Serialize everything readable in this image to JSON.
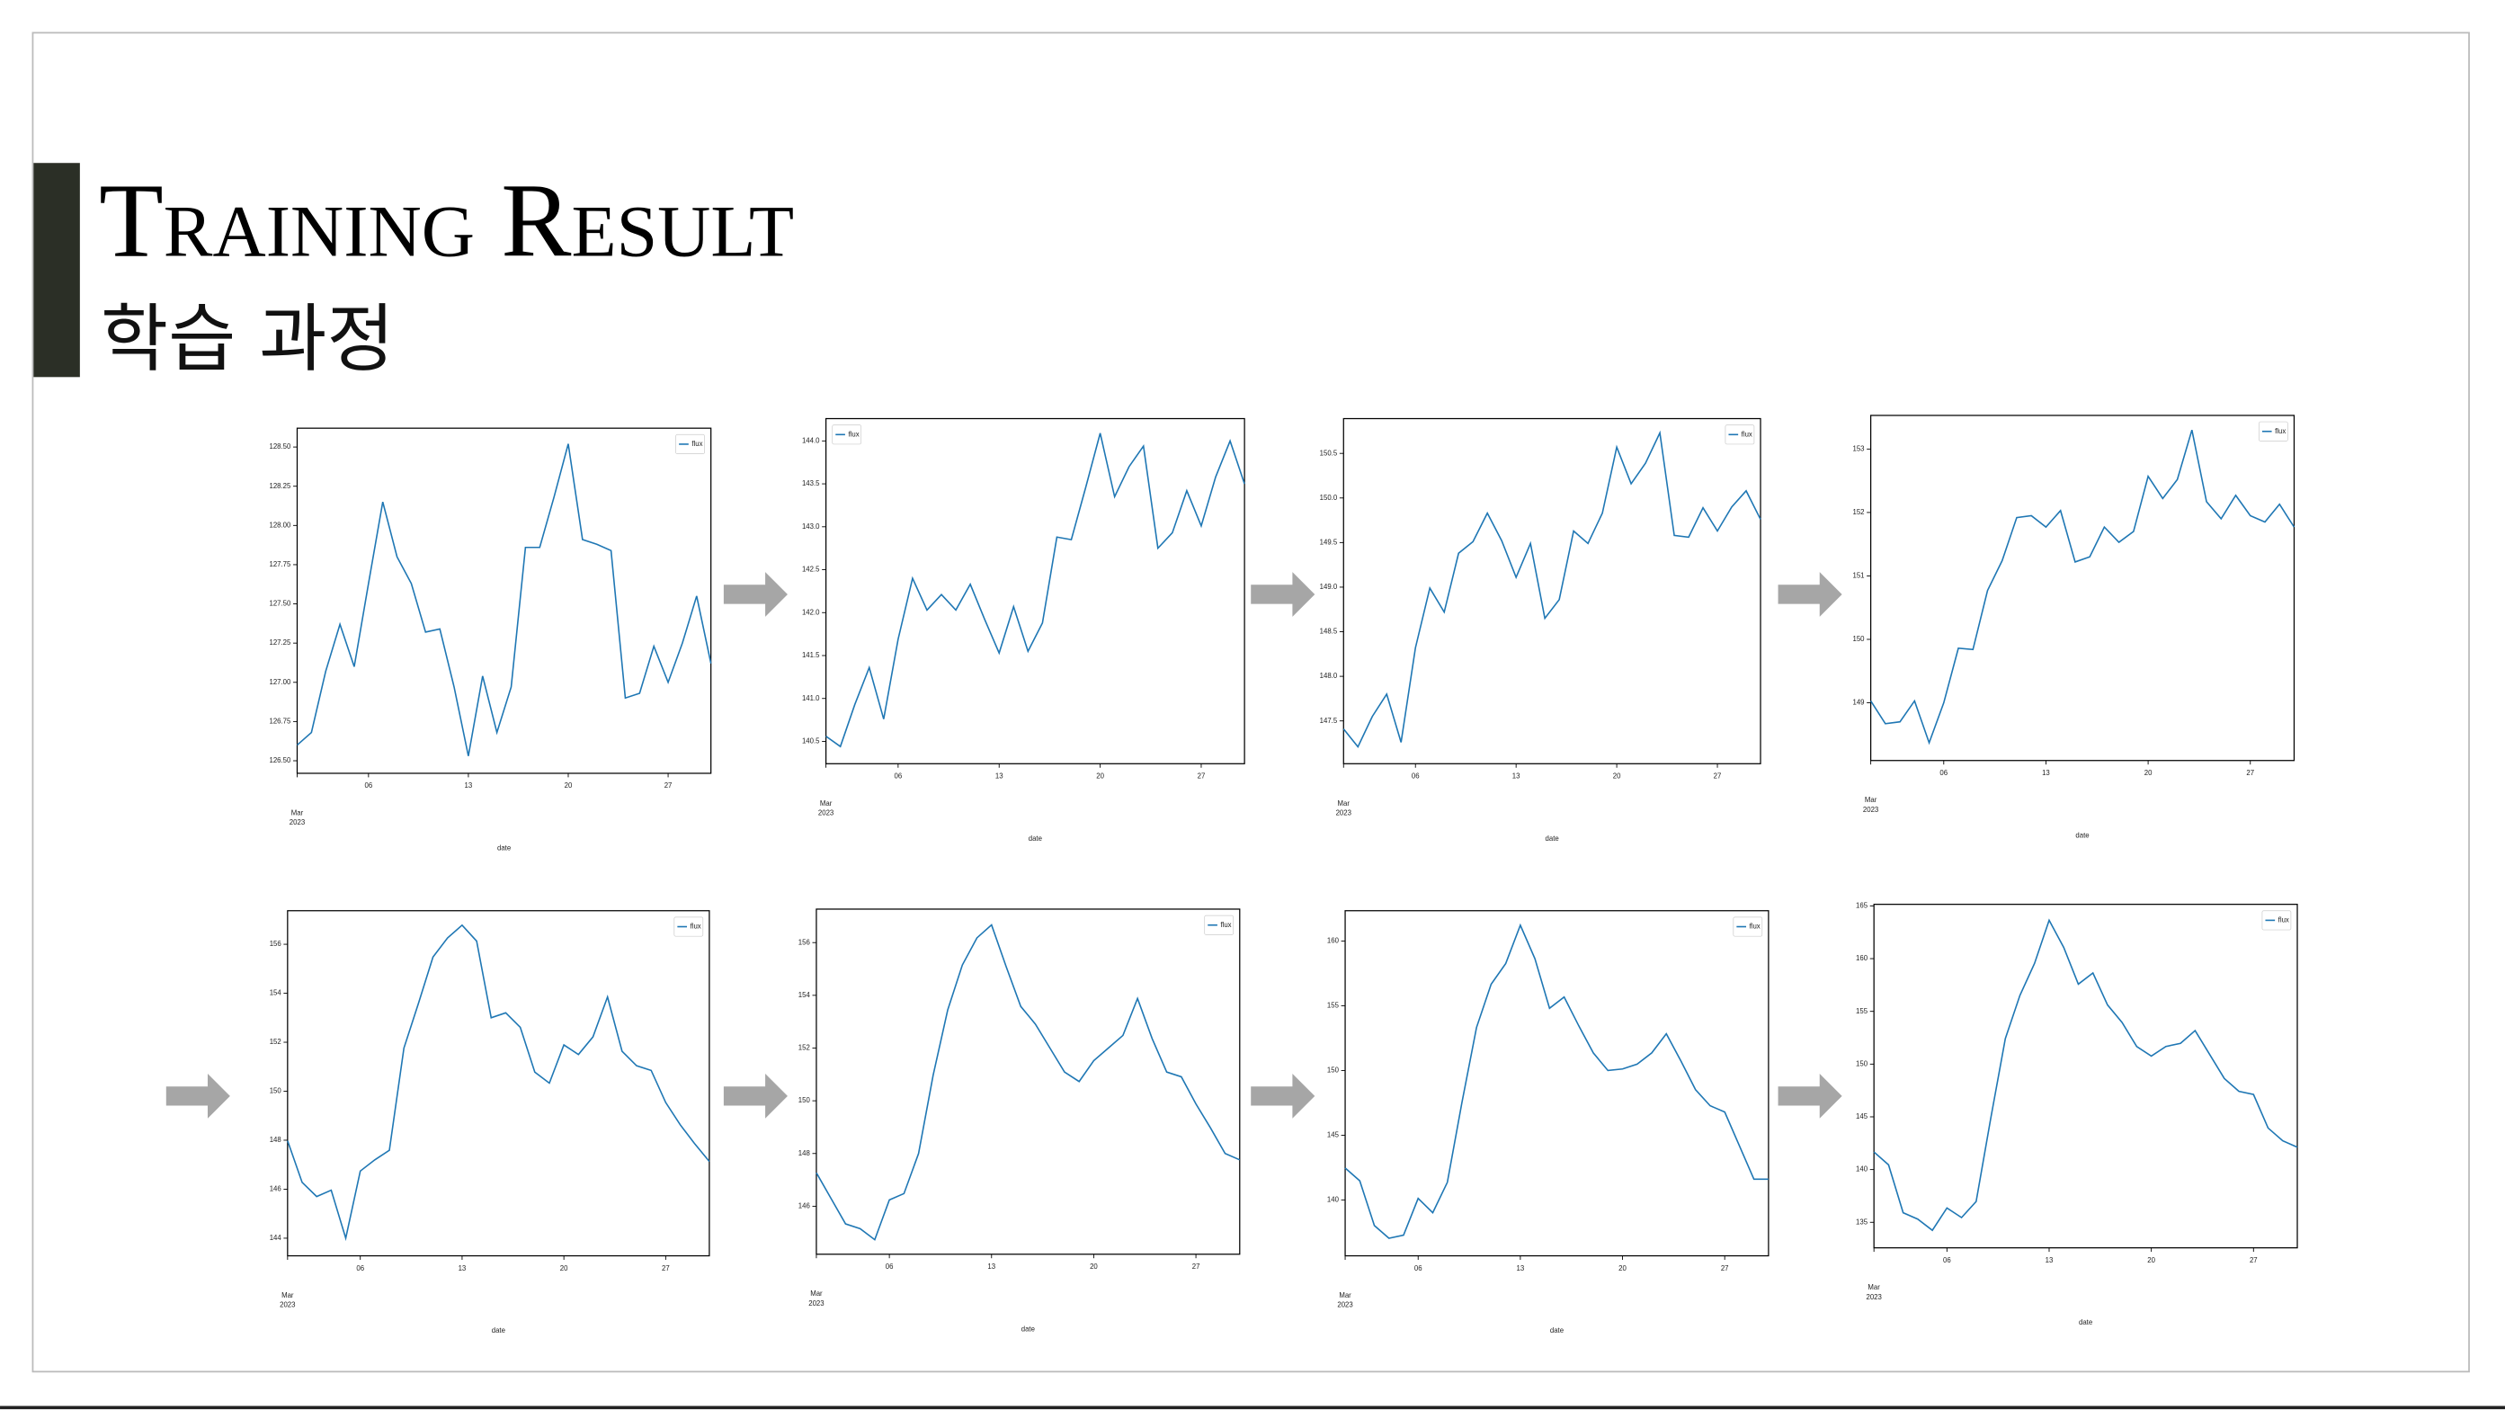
{
  "slide": {
    "title": "Training Result",
    "subtitle": "학습 과정"
  },
  "chart_data": [
    {
      "type": "line",
      "xlabel": "date",
      "legend": "upper right",
      "xlim": [
        "2023-03-01",
        "2023-03-30"
      ],
      "xticks": [
        {
          "value": "2023-03-01",
          "label": "Mar"
        },
        {
          "value": "2023-03-06",
          "label": "06"
        },
        {
          "value": "2023-03-13",
          "label": "13"
        },
        {
          "value": "2023-03-20",
          "label": "20"
        },
        {
          "value": "2023-03-27",
          "label": "27"
        }
      ],
      "xtick_year": "2023",
      "ylim": [
        126.42,
        128.62
      ],
      "yticks": [
        {
          "value": 126.5,
          "label": "126.50"
        },
        {
          "value": 126.75,
          "label": "126.75"
        },
        {
          "value": 127,
          "label": "127.00"
        },
        {
          "value": 127.25,
          "label": "127.25"
        },
        {
          "value": 127.5,
          "label": "127.50"
        },
        {
          "value": 127.75,
          "label": "127.75"
        },
        {
          "value": 128,
          "label": "128.00"
        },
        {
          "value": 128.25,
          "label": "128.25"
        },
        {
          "value": 128.5,
          "label": "128.50"
        }
      ],
      "x": [
        "2023-03-01",
        "2023-03-02",
        "2023-03-03",
        "2023-03-04",
        "2023-03-05",
        "2023-03-06",
        "2023-03-07",
        "2023-03-08",
        "2023-03-09",
        "2023-03-10",
        "2023-03-11",
        "2023-03-12",
        "2023-03-13",
        "2023-03-14",
        "2023-03-15",
        "2023-03-16",
        "2023-03-17",
        "2023-03-18",
        "2023-03-19",
        "2023-03-20",
        "2023-03-21",
        "2023-03-22",
        "2023-03-23",
        "2023-03-24",
        "2023-03-25",
        "2023-03-26",
        "2023-03-27",
        "2023-03-28",
        "2023-03-29",
        "2023-03-30"
      ],
      "series": [
        {
          "name": "flux",
          "color": "#1f77b4",
          "values": [
            126.6,
            126.68,
            127.07,
            127.37,
            127.1,
            127.63,
            128.15,
            127.8,
            127.63,
            127.32,
            127.34,
            126.97,
            126.53,
            127.04,
            126.68,
            126.97,
            127.86,
            127.86,
            128.18,
            128.52,
            127.91,
            127.88,
            127.84,
            126.9,
            126.93,
            127.23,
            127.0,
            127.25,
            127.55,
            127.12
          ]
        }
      ]
    },
    {
      "type": "line",
      "xlabel": "date",
      "legend": "upper left",
      "xlim": [
        "2023-03-01",
        "2023-03-30"
      ],
      "xticks": [
        {
          "value": "2023-03-01",
          "label": "Mar"
        },
        {
          "value": "2023-03-06",
          "label": "06"
        },
        {
          "value": "2023-03-13",
          "label": "13"
        },
        {
          "value": "2023-03-20",
          "label": "20"
        },
        {
          "value": "2023-03-27",
          "label": "27"
        }
      ],
      "xtick_year": "2023",
      "ylim": [
        140.24,
        144.26
      ],
      "yticks": [
        140.5,
        {
          "value": 141,
          "label": "141.0"
        },
        141.5,
        {
          "value": 142,
          "label": "142.0"
        },
        142.5,
        {
          "value": 143,
          "label": "143.0"
        },
        143.5,
        {
          "value": 144,
          "label": "144.0"
        }
      ],
      "x": [
        "2023-03-01",
        "2023-03-02",
        "2023-03-03",
        "2023-03-04",
        "2023-03-05",
        "2023-03-06",
        "2023-03-07",
        "2023-03-08",
        "2023-03-09",
        "2023-03-10",
        "2023-03-11",
        "2023-03-12",
        "2023-03-13",
        "2023-03-14",
        "2023-03-15",
        "2023-03-16",
        "2023-03-17",
        "2023-03-18",
        "2023-03-19",
        "2023-03-20",
        "2023-03-21",
        "2023-03-22",
        "2023-03-23",
        "2023-03-24",
        "2023-03-25",
        "2023-03-26",
        "2023-03-27",
        "2023-03-28",
        "2023-03-29",
        "2023-03-30"
      ],
      "series": [
        {
          "name": "flux",
          "color": "#1f77b4",
          "values": [
            140.56,
            140.44,
            140.93,
            141.36,
            140.76,
            141.69,
            142.4,
            142.03,
            142.21,
            142.03,
            142.33,
            141.92,
            141.53,
            142.07,
            141.55,
            141.88,
            142.88,
            142.85,
            143.46,
            144.09,
            143.35,
            143.7,
            143.94,
            142.75,
            142.93,
            143.42,
            143.01,
            143.58,
            144.0,
            143.5
          ]
        }
      ]
    },
    {
      "type": "line",
      "xlabel": "date",
      "legend": "upper right",
      "xlim": [
        "2023-03-01",
        "2023-03-30"
      ],
      "xticks": [
        {
          "value": "2023-03-01",
          "label": "Mar"
        },
        {
          "value": "2023-03-06",
          "label": "06"
        },
        {
          "value": "2023-03-13",
          "label": "13"
        },
        {
          "value": "2023-03-20",
          "label": "20"
        },
        {
          "value": "2023-03-27",
          "label": "27"
        }
      ],
      "xtick_year": "2023",
      "ylim": [
        147.02,
        150.89
      ],
      "yticks": [
        147.5,
        {
          "value": 148,
          "label": "148.0"
        },
        148.5,
        {
          "value": 149,
          "label": "149.0"
        },
        149.5,
        {
          "value": 150,
          "label": "150.0"
        },
        150.5
      ],
      "x": [
        "2023-03-01",
        "2023-03-02",
        "2023-03-03",
        "2023-03-04",
        "2023-03-05",
        "2023-03-06",
        "2023-03-07",
        "2023-03-08",
        "2023-03-09",
        "2023-03-10",
        "2023-03-11",
        "2023-03-12",
        "2023-03-13",
        "2023-03-14",
        "2023-03-15",
        "2023-03-16",
        "2023-03-17",
        "2023-03-18",
        "2023-03-19",
        "2023-03-20",
        "2023-03-21",
        "2023-03-22",
        "2023-03-23",
        "2023-03-24",
        "2023-03-25",
        "2023-03-26",
        "2023-03-27",
        "2023-03-28",
        "2023-03-29",
        "2023-03-30"
      ],
      "series": [
        {
          "name": "flux",
          "color": "#1f77b4",
          "values": [
            147.41,
            147.21,
            147.55,
            147.8,
            147.26,
            148.32,
            148.99,
            148.72,
            149.38,
            149.51,
            149.83,
            149.52,
            149.11,
            149.49,
            148.65,
            148.86,
            149.63,
            149.49,
            149.83,
            150.57,
            150.16,
            150.39,
            150.73,
            149.58,
            149.56,
            149.89,
            149.63,
            149.9,
            150.08,
            149.76
          ]
        }
      ]
    },
    {
      "type": "line",
      "xlabel": "date",
      "legend": "upper right",
      "xlim": [
        "2023-03-01",
        "2023-03-30"
      ],
      "xticks": [
        {
          "value": "2023-03-01",
          "label": "Mar"
        },
        {
          "value": "2023-03-06",
          "label": "06"
        },
        {
          "value": "2023-03-13",
          "label": "13"
        },
        {
          "value": "2023-03-20",
          "label": "20"
        },
        {
          "value": "2023-03-27",
          "label": "27"
        }
      ],
      "xtick_year": "2023",
      "ylim": [
        148.09,
        153.53
      ],
      "yticks": [
        149,
        150,
        151,
        152,
        153
      ],
      "x": [
        "2023-03-01",
        "2023-03-02",
        "2023-03-03",
        "2023-03-04",
        "2023-03-05",
        "2023-03-06",
        "2023-03-07",
        "2023-03-08",
        "2023-03-09",
        "2023-03-10",
        "2023-03-11",
        "2023-03-12",
        "2023-03-13",
        "2023-03-14",
        "2023-03-15",
        "2023-03-16",
        "2023-03-17",
        "2023-03-18",
        "2023-03-19",
        "2023-03-20",
        "2023-03-21",
        "2023-03-22",
        "2023-03-23",
        "2023-03-24",
        "2023-03-25",
        "2023-03-26",
        "2023-03-27",
        "2023-03-28",
        "2023-03-29",
        "2023-03-30"
      ],
      "series": [
        {
          "name": "flux",
          "color": "#1f77b4",
          "values": [
            149.03,
            148.67,
            148.7,
            149.03,
            148.37,
            149.0,
            149.86,
            149.84,
            150.77,
            151.24,
            151.92,
            151.95,
            151.77,
            152.03,
            151.22,
            151.3,
            151.77,
            151.53,
            151.7,
            152.57,
            152.22,
            152.52,
            153.3,
            152.17,
            151.9,
            152.27,
            151.95,
            151.85,
            152.13,
            151.77
          ]
        }
      ]
    },
    {
      "type": "line",
      "xlabel": "date",
      "legend": "upper right",
      "xlim": [
        "2023-03-01",
        "2023-03-30"
      ],
      "xticks": [
        {
          "value": "2023-03-01",
          "label": "Mar"
        },
        {
          "value": "2023-03-06",
          "label": "06"
        },
        {
          "value": "2023-03-13",
          "label": "13"
        },
        {
          "value": "2023-03-20",
          "label": "20"
        },
        {
          "value": "2023-03-27",
          "label": "27"
        }
      ],
      "xtick_year": "2023",
      "ylim": [
        143.28,
        157.37
      ],
      "yticks": [
        144,
        146,
        148,
        150,
        152,
        154,
        156
      ],
      "x": [
        "2023-03-01",
        "2023-03-02",
        "2023-03-03",
        "2023-03-04",
        "2023-03-05",
        "2023-03-06",
        "2023-03-07",
        "2023-03-08",
        "2023-03-09",
        "2023-03-10",
        "2023-03-11",
        "2023-03-12",
        "2023-03-13",
        "2023-03-14",
        "2023-03-15",
        "2023-03-16",
        "2023-03-17",
        "2023-03-18",
        "2023-03-19",
        "2023-03-20",
        "2023-03-21",
        "2023-03-22",
        "2023-03-23",
        "2023-03-24",
        "2023-03-25",
        "2023-03-26",
        "2023-03-27",
        "2023-03-28",
        "2023-03-29",
        "2023-03-30"
      ],
      "series": [
        {
          "name": "flux",
          "color": "#1f77b4",
          "values": [
            147.98,
            146.28,
            145.7,
            145.96,
            144.0,
            146.74,
            147.2,
            147.59,
            151.76,
            153.59,
            155.48,
            156.26,
            156.78,
            156.13,
            153.0,
            153.2,
            152.61,
            150.78,
            150.33,
            151.89,
            151.5,
            152.22,
            153.85,
            151.63,
            151.04,
            150.85,
            149.54,
            148.63,
            147.85,
            147.13
          ]
        }
      ]
    },
    {
      "type": "line",
      "xlabel": "date",
      "legend": "upper right",
      "xlim": [
        "2023-03-01",
        "2023-03-30"
      ],
      "xticks": [
        {
          "value": "2023-03-01",
          "label": "Mar"
        },
        {
          "value": "2023-03-06",
          "label": "06"
        },
        {
          "value": "2023-03-13",
          "label": "13"
        },
        {
          "value": "2023-03-20",
          "label": "20"
        },
        {
          "value": "2023-03-27",
          "label": "27"
        }
      ],
      "xtick_year": "2023",
      "ylim": [
        144.18,
        157.27
      ],
      "yticks": [
        146,
        148,
        150,
        152,
        154,
        156
      ],
      "x": [
        "2023-03-01",
        "2023-03-02",
        "2023-03-03",
        "2023-03-04",
        "2023-03-05",
        "2023-03-06",
        "2023-03-07",
        "2023-03-08",
        "2023-03-09",
        "2023-03-10",
        "2023-03-11",
        "2023-03-12",
        "2023-03-13",
        "2023-03-14",
        "2023-03-15",
        "2023-03-16",
        "2023-03-17",
        "2023-03-18",
        "2023-03-19",
        "2023-03-20",
        "2023-03-21",
        "2023-03-22",
        "2023-03-23",
        "2023-03-24",
        "2023-03-25",
        "2023-03-26",
        "2023-03-27",
        "2023-03-28",
        "2023-03-29",
        "2023-03-30"
      ],
      "series": [
        {
          "name": "flux",
          "color": "#1f77b4",
          "values": [
            147.27,
            146.3,
            145.33,
            145.15,
            144.73,
            146.24,
            146.48,
            148.0,
            150.97,
            153.45,
            155.15,
            156.18,
            156.67,
            155.09,
            153.58,
            152.91,
            152.0,
            151.09,
            150.73,
            151.52,
            152.0,
            152.48,
            153.88,
            152.36,
            151.09,
            150.91,
            149.88,
            148.97,
            148.0,
            147.76
          ]
        }
      ]
    },
    {
      "type": "line",
      "xlabel": "date",
      "legend": "upper right",
      "xlim": [
        "2023-03-01",
        "2023-03-30"
      ],
      "xticks": [
        {
          "value": "2023-03-01",
          "label": "Mar"
        },
        {
          "value": "2023-03-06",
          "label": "06"
        },
        {
          "value": "2023-03-13",
          "label": "13"
        },
        {
          "value": "2023-03-20",
          "label": "20"
        },
        {
          "value": "2023-03-27",
          "label": "27"
        }
      ],
      "xtick_year": "2023",
      "ylim": [
        135.68,
        162.35
      ],
      "yticks": [
        140,
        145,
        150,
        155,
        160
      ],
      "x": [
        "2023-03-01",
        "2023-03-02",
        "2023-03-03",
        "2023-03-04",
        "2023-03-05",
        "2023-03-06",
        "2023-03-07",
        "2023-03-08",
        "2023-03-09",
        "2023-03-10",
        "2023-03-11",
        "2023-03-12",
        "2023-03-13",
        "2023-03-14",
        "2023-03-15",
        "2023-03-16",
        "2023-03-17",
        "2023-03-18",
        "2023-03-19",
        "2023-03-20",
        "2023-03-21",
        "2023-03-22",
        "2023-03-23",
        "2023-03-24",
        "2023-03-25",
        "2023-03-26",
        "2023-03-27",
        "2023-03-28",
        "2023-03-29",
        "2023-03-30"
      ],
      "series": [
        {
          "name": "flux",
          "color": "#1f77b4",
          "values": [
            142.47,
            141.48,
            138.02,
            137.04,
            137.28,
            140.12,
            139.01,
            141.36,
            147.53,
            153.33,
            156.67,
            158.27,
            161.23,
            158.64,
            154.81,
            155.68,
            153.46,
            151.36,
            150.0,
            150.12,
            150.49,
            151.36,
            152.84,
            150.74,
            148.52,
            147.28,
            146.79,
            144.2,
            141.6,
            141.6
          ]
        }
      ]
    },
    {
      "type": "line",
      "xlabel": "date",
      "legend": "upper right",
      "xlim": [
        "2023-03-01",
        "2023-03-30"
      ],
      "xticks": [
        {
          "value": "2023-03-01",
          "label": "Mar"
        },
        {
          "value": "2023-03-06",
          "label": "06"
        },
        {
          "value": "2023-03-13",
          "label": "13"
        },
        {
          "value": "2023-03-20",
          "label": "20"
        },
        {
          "value": "2023-03-27",
          "label": "27"
        }
      ],
      "xtick_year": "2023",
      "ylim": [
        132.58,
        165.15
      ],
      "yticks": [
        135,
        140,
        145,
        150,
        155,
        160,
        165
      ],
      "x": [
        "2023-03-01",
        "2023-03-02",
        "2023-03-03",
        "2023-03-04",
        "2023-03-05",
        "2023-03-06",
        "2023-03-07",
        "2023-03-08",
        "2023-03-09",
        "2023-03-10",
        "2023-03-11",
        "2023-03-12",
        "2023-03-13",
        "2023-03-14",
        "2023-03-15",
        "2023-03-16",
        "2023-03-17",
        "2023-03-18",
        "2023-03-19",
        "2023-03-20",
        "2023-03-21",
        "2023-03-22",
        "2023-03-23",
        "2023-03-24",
        "2023-03-25",
        "2023-03-26",
        "2023-03-27",
        "2023-03-28",
        "2023-03-29",
        "2023-03-30"
      ],
      "series": [
        {
          "name": "flux",
          "color": "#1f77b4",
          "values": [
            141.67,
            140.45,
            135.91,
            135.3,
            134.24,
            136.36,
            135.45,
            136.97,
            144.85,
            152.42,
            156.52,
            159.55,
            163.64,
            161.06,
            157.58,
            158.64,
            155.61,
            153.94,
            151.67,
            150.76,
            151.67,
            151.97,
            153.18,
            150.91,
            148.64,
            147.42,
            147.12,
            143.94,
            142.73,
            142.12
          ]
        }
      ]
    }
  ]
}
